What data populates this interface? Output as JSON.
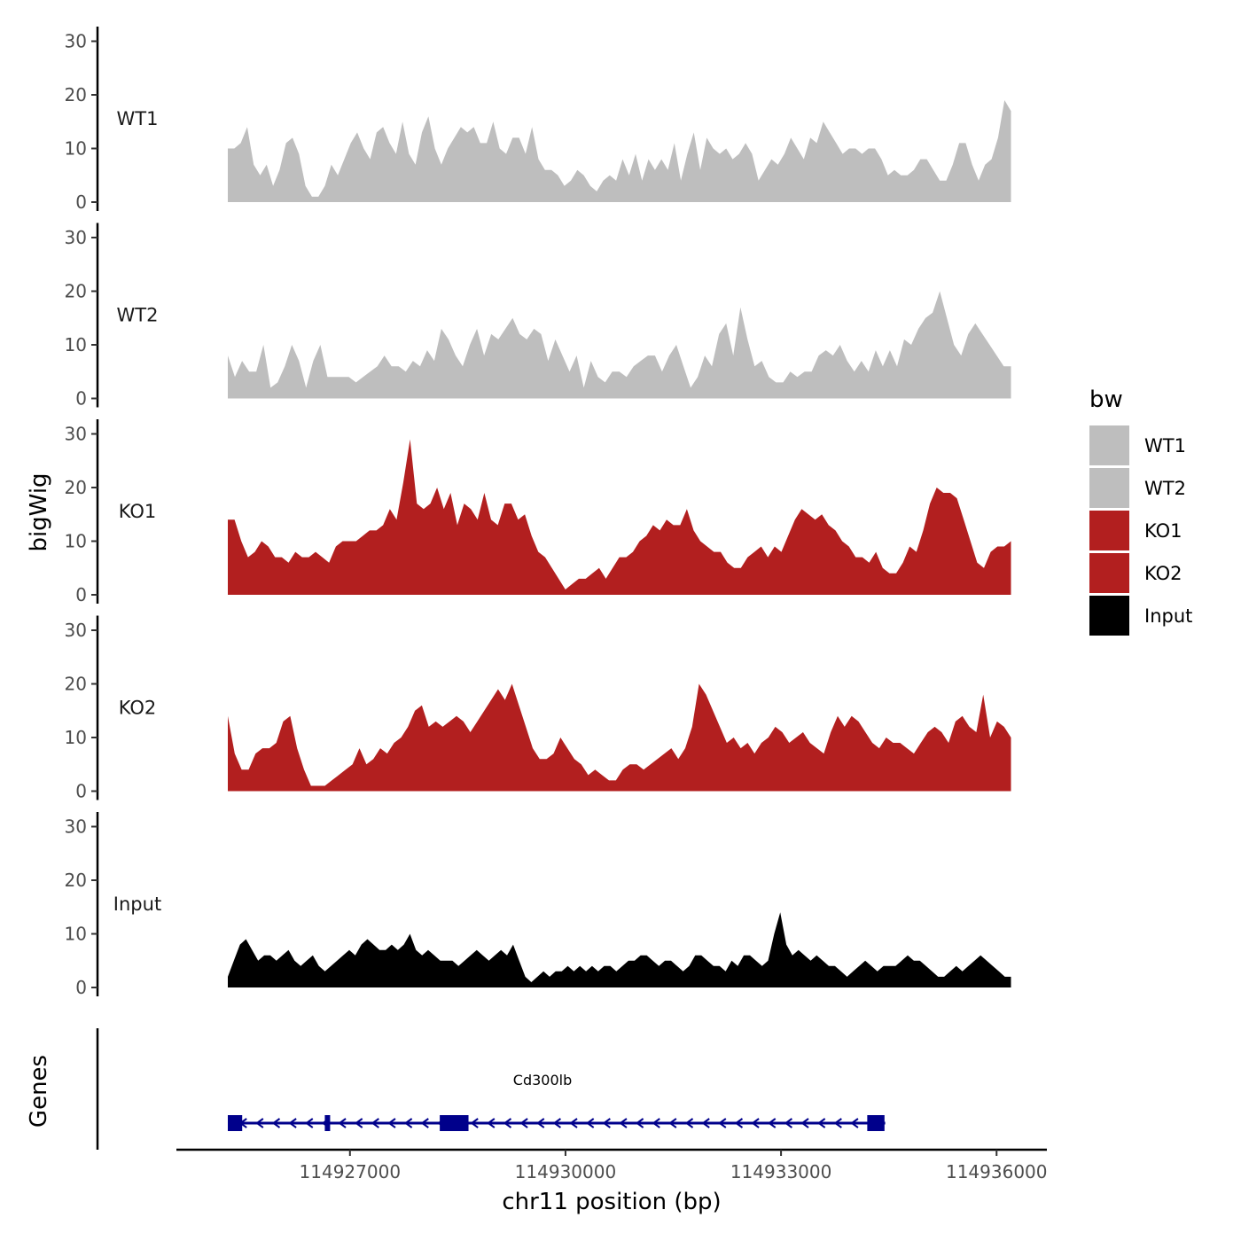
{
  "chart_data": {
    "type": "area",
    "ylabel": "bigWig",
    "xlabel": "chr11 position (bp)",
    "genes_label": "Genes",
    "xlim": [
      114924350,
      114936700
    ],
    "ylim": [
      0,
      31
    ],
    "y_ticks": [
      0,
      10,
      20,
      30
    ],
    "x_ticks": [
      114927000,
      114930000,
      114933000,
      114936000
    ],
    "x_tick_labels": [
      "114927000",
      "114930000",
      "114933000",
      "114936000"
    ],
    "region": [
      114925300,
      114936200
    ],
    "legend": {
      "title": "bw",
      "placement": "right",
      "entries": [
        {
          "label": "WT1",
          "color": "#bebebe"
        },
        {
          "label": "WT2",
          "color": "#bebebe"
        },
        {
          "label": "KO1",
          "color": "#b21f1f"
        },
        {
          "label": "KO2",
          "color": "#b21f1f"
        },
        {
          "label": "Input",
          "color": "#000000"
        }
      ]
    },
    "series": [
      {
        "name": "WT1",
        "color": "#bebebe",
        "values": [
          10,
          10,
          11,
          14,
          7,
          5,
          7,
          3,
          6,
          11,
          12,
          9,
          3,
          1,
          1,
          3,
          7,
          5,
          8,
          11,
          13,
          10,
          8,
          13,
          14,
          11,
          9,
          15,
          9,
          7,
          13,
          16,
          10,
          7,
          10,
          12,
          14,
          13,
          14,
          11,
          11,
          15,
          10,
          9,
          12,
          12,
          9,
          14,
          8,
          6,
          6,
          5,
          3,
          4,
          6,
          5,
          3,
          2,
          4,
          5,
          4,
          8,
          5,
          9,
          4,
          8,
          6,
          8,
          6,
          11,
          4,
          9,
          13,
          6,
          12,
          10,
          9,
          10,
          8,
          9,
          11,
          9,
          4,
          6,
          8,
          7,
          9,
          12,
          10,
          8,
          12,
          11,
          15,
          13,
          11,
          9,
          10,
          10,
          9,
          10,
          10,
          8,
          5,
          6,
          5,
          5,
          6,
          8,
          8,
          6,
          4,
          4,
          7,
          11,
          11,
          7,
          4,
          7,
          8,
          12,
          19,
          17
        ]
      },
      {
        "name": "WT2",
        "color": "#bebebe",
        "values": [
          8,
          4,
          7,
          5,
          5,
          10,
          2,
          3,
          6,
          10,
          7,
          2,
          7,
          10,
          4,
          4,
          4,
          4,
          3,
          4,
          5,
          6,
          8,
          6,
          6,
          5,
          7,
          6,
          9,
          7,
          13,
          11,
          8,
          6,
          10,
          13,
          8,
          12,
          11,
          13,
          15,
          12,
          11,
          13,
          12,
          7,
          11,
          8,
          5,
          8,
          2,
          7,
          4,
          3,
          5,
          5,
          4,
          6,
          7,
          8,
          8,
          5,
          8,
          10,
          6,
          2,
          4,
          8,
          6,
          12,
          14,
          8,
          17,
          11,
          6,
          7,
          4,
          3,
          3,
          5,
          4,
          5,
          5,
          8,
          9,
          8,
          10,
          7,
          5,
          7,
          5,
          9,
          6,
          9,
          6,
          11,
          10,
          13,
          15,
          16,
          20,
          15,
          10,
          8,
          12,
          14,
          12,
          10,
          8,
          6,
          6
        ]
      },
      {
        "name": "KO1",
        "color": "#b21f1f",
        "values": [
          14,
          14,
          10,
          7,
          8,
          10,
          9,
          7,
          7,
          6,
          8,
          7,
          7,
          8,
          7,
          6,
          9,
          10,
          10,
          10,
          11,
          12,
          12,
          13,
          16,
          14,
          21,
          29,
          17,
          16,
          17,
          20,
          16,
          19,
          13,
          17,
          16,
          14,
          19,
          14,
          13,
          17,
          17,
          14,
          15,
          11,
          8,
          7,
          5,
          3,
          1,
          2,
          3,
          3,
          4,
          5,
          3,
          5,
          7,
          7,
          8,
          10,
          11,
          13,
          12,
          14,
          13,
          13,
          16,
          12,
          10,
          9,
          8,
          8,
          6,
          5,
          5,
          7,
          8,
          9,
          7,
          9,
          8,
          11,
          14,
          16,
          15,
          14,
          15,
          13,
          12,
          10,
          9,
          7,
          7,
          6,
          8,
          5,
          4,
          4,
          6,
          9,
          8,
          12,
          17,
          20,
          19,
          19,
          18,
          14,
          10,
          6,
          5,
          8,
          9,
          9,
          10
        ]
      },
      {
        "name": "KO2",
        "color": "#b21f1f",
        "values": [
          14,
          7,
          4,
          4,
          7,
          8,
          8,
          9,
          13,
          14,
          8,
          4,
          1,
          1,
          1,
          2,
          3,
          4,
          5,
          8,
          5,
          6,
          8,
          7,
          9,
          10,
          12,
          15,
          16,
          12,
          13,
          12,
          13,
          14,
          13,
          11,
          13,
          15,
          17,
          19,
          17,
          20,
          16,
          12,
          8,
          6,
          6,
          7,
          10,
          8,
          6,
          5,
          3,
          4,
          3,
          2,
          2,
          4,
          5,
          5,
          4,
          5,
          6,
          7,
          8,
          6,
          8,
          12,
          20,
          18,
          15,
          12,
          9,
          10,
          8,
          9,
          7,
          9,
          10,
          12,
          11,
          9,
          10,
          11,
          9,
          8,
          7,
          11,
          14,
          12,
          14,
          13,
          11,
          9,
          8,
          10,
          9,
          9,
          8,
          7,
          9,
          11,
          12,
          11,
          9,
          13,
          14,
          12,
          11,
          18,
          10,
          13,
          12,
          10
        ]
      },
      {
        "name": "Input",
        "color": "#000000",
        "values": [
          2,
          5,
          8,
          9,
          7,
          5,
          6,
          6,
          5,
          6,
          7,
          5,
          4,
          5,
          6,
          4,
          3,
          4,
          5,
          6,
          7,
          6,
          8,
          9,
          8,
          7,
          7,
          8,
          7,
          8,
          10,
          7,
          6,
          7,
          6,
          5,
          5,
          5,
          4,
          5,
          6,
          7,
          6,
          5,
          6,
          7,
          6,
          8,
          5,
          2,
          1,
          2,
          3,
          2,
          3,
          3,
          4,
          3,
          4,
          3,
          4,
          3,
          4,
          4,
          3,
          4,
          5,
          5,
          6,
          6,
          5,
          4,
          5,
          5,
          4,
          3,
          4,
          6,
          6,
          5,
          4,
          4,
          3,
          5,
          4,
          6,
          6,
          5,
          4,
          5,
          10,
          14,
          8,
          6,
          7,
          6,
          5,
          6,
          5,
          4,
          4,
          3,
          2,
          3,
          4,
          5,
          4,
          3,
          4,
          4,
          4,
          5,
          6,
          5,
          5,
          4,
          3,
          2,
          2,
          3,
          4,
          3,
          4,
          5,
          6,
          5,
          4,
          3,
          2,
          2
        ]
      }
    ],
    "gene_track": {
      "gene": "Cd300lb",
      "strand": "-",
      "color": "#00008b",
      "start": 114925350,
      "end": 114934450,
      "exons": [
        [
          114925300,
          114925500
        ],
        [
          114926650,
          114926720
        ],
        [
          114928250,
          114928650
        ],
        [
          114934200,
          114934440
        ]
      ]
    }
  }
}
